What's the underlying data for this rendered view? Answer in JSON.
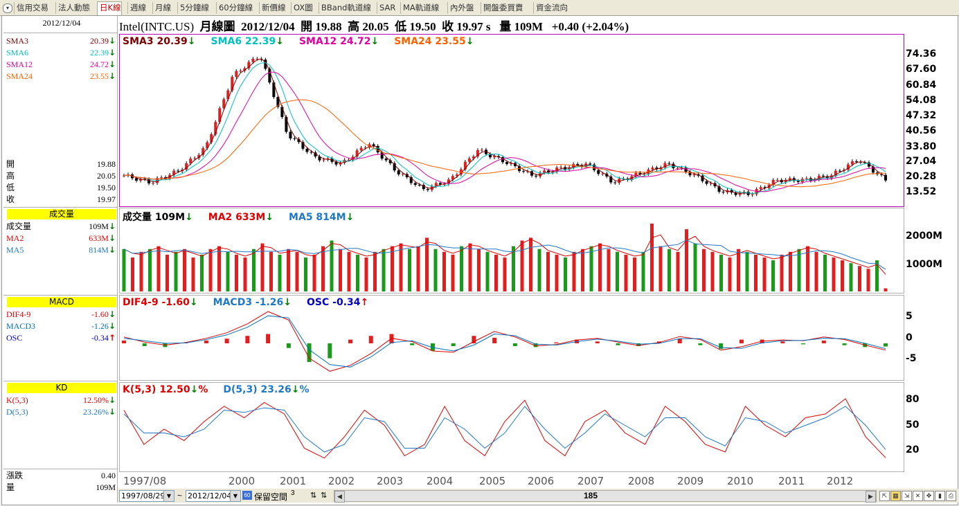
{
  "tabs": [
    "信用交易",
    "法人動態",
    "日K線",
    "週線",
    "月線",
    "5分鐘線",
    "60分鐘線",
    "新價線",
    "OX圖",
    "BBand軌道線",
    "SAR",
    "MA軌道線",
    "內外盤",
    "開盤委買賣",
    "資金流向"
  ],
  "active_tab": "日K線",
  "colors": {
    "up": "#e02020",
    "down": "#1a9a1a",
    "sma3": "#800000",
    "sma6": "#00c0c0",
    "sma12": "#e000a0",
    "sma24": "#ff6000",
    "macd": "#0070c0",
    "dif": "#e00000",
    "osc": "#0000c0",
    "kline_k": "#e00000",
    "kline_d": "#1e78c8",
    "ma5vol": "#1e78c8",
    "ma2vol": "#e00000"
  },
  "side": {
    "date": "2012/12/04",
    "sma": [
      {
        "label": "SMA3",
        "value": "20.39",
        "dir": "down"
      },
      {
        "label": "SMA6",
        "value": "22.39",
        "dir": "down"
      },
      {
        "label": "SMA12",
        "value": "24.72",
        "dir": "down"
      },
      {
        "label": "SMA24",
        "value": "23.55",
        "dir": "down"
      }
    ],
    "ohlc": [
      {
        "label": "開",
        "value": "19.88"
      },
      {
        "label": "高",
        "value": "20.05"
      },
      {
        "label": "低",
        "value": "19.50"
      },
      {
        "label": "收",
        "value": "19.97"
      }
    ],
    "vol_title": "成交量",
    "vol": [
      {
        "label": "成交量",
        "value": "109M",
        "dir": "down"
      },
      {
        "label": "MA2",
        "value": "633M",
        "dir": "down"
      },
      {
        "label": "MA5",
        "value": "814M",
        "dir": "down"
      }
    ],
    "macd_title": "MACD",
    "macd": [
      {
        "label": "DIF4-9",
        "value": "-1.60",
        "dir": "down"
      },
      {
        "label": "MACD3",
        "value": "-1.26",
        "dir": "down"
      },
      {
        "label": "OSC",
        "value": "-0.34",
        "dir": "up"
      }
    ],
    "kd_title": "KD",
    "kd": [
      {
        "label": "K(5,3)",
        "value": "12.50%",
        "dir": "down"
      },
      {
        "label": "D(5,3)",
        "value": "23.26%",
        "dir": "down"
      }
    ],
    "change_label": "漲跌",
    "change_value": "0.40",
    "volume_label": "量",
    "volume_value": "109M"
  },
  "header": {
    "symbol": "Intel(INTC.US)",
    "period": "月線圖",
    "date": "2012/12/04",
    "open_label": "開",
    "open": "19.88",
    "high_label": "高",
    "high": "20.05",
    "low_label": "低",
    "low": "19.50",
    "close_label": "收",
    "close": "19.97",
    "close_flag": "s",
    "vol_label": "量",
    "vol": "109M",
    "change": "+0.40 (+2.04%)"
  },
  "legends": {
    "price": [
      {
        "text": "SMA3 20.39",
        "dir": "down",
        "color": "#800000"
      },
      {
        "text": "SMA6 22.39",
        "dir": "down",
        "color": "#00c0c0"
      },
      {
        "text": "SMA12 24.72",
        "dir": "down",
        "color": "#e000a0"
      },
      {
        "text": "SMA24 23.55",
        "dir": "down",
        "color": "#ff6000"
      }
    ],
    "volume": [
      {
        "text": "成交量 109M",
        "dir": "down",
        "color": "#000000"
      },
      {
        "text": "MA2 633M",
        "dir": "down",
        "color": "#e00000"
      },
      {
        "text": "MA5 814M",
        "dir": "down",
        "color": "#1e78c8"
      }
    ],
    "macd": [
      {
        "text": "DIF4-9 -1.60",
        "dir": "down",
        "color": "#e00000"
      },
      {
        "text": "MACD3 -1.26",
        "dir": "down",
        "color": "#1e78c8"
      },
      {
        "text": "OSC -0.34",
        "dir": "up",
        "color": "#0000c0"
      }
    ],
    "kd": [
      {
        "text": "K(5,3) 12.50",
        "dir": "down",
        "suffix": "%",
        "color": "#e00000"
      },
      {
        "text": "D(5,3) 23.26",
        "dir": "down",
        "suffix": "%",
        "color": "#1e78c8"
      }
    ]
  },
  "axes": {
    "price_ticks": [
      "74.36",
      "67.60",
      "60.84",
      "54.08",
      "47.32",
      "40.56",
      "33.80",
      "27.04",
      "20.28",
      "13.52"
    ],
    "volume_ticks": [
      "2000M",
      "1000M"
    ],
    "macd_ticks": [
      "5",
      "0",
      "-5"
    ],
    "kd_ticks": [
      "80",
      "50",
      "20"
    ],
    "x_labels": [
      "1997/08",
      "2000",
      "2001",
      "2002",
      "2003",
      "2004",
      "2005",
      "2006",
      "2007",
      "2008",
      "2009",
      "2010",
      "2011",
      "2012"
    ]
  },
  "bottom": {
    "start_date": "1997/08/29",
    "tilde": "~",
    "end_date": "2012/12/04",
    "reserve_label": "保留空間",
    "reserve_value": "3",
    "scroll_value": "185"
  },
  "chart_data": [
    {
      "type": "line",
      "title": "Intel(INTC.US) 月線圖",
      "x_range": [
        "1997/08",
        "2012/12"
      ],
      "ylim": [
        13.52,
        74.36
      ],
      "series": [
        {
          "name": "Close",
          "x": [
            "1997/08",
            "1998/06",
            "1999/06",
            "1999/12",
            "2000/06",
            "2000/08",
            "2000/11",
            "2001/06",
            "2001/09",
            "2002/01",
            "2002/06",
            "2002/10",
            "2003/06",
            "2003/12",
            "2004/06",
            "2004/09",
            "2005/06",
            "2006/01",
            "2006/07",
            "2007/06",
            "2007/11",
            "2008/06",
            "2008/11",
            "2009/03",
            "2009/12",
            "2010/06",
            "2011/06",
            "2012/04",
            "2012/12"
          ],
          "values": [
            22,
            19,
            24,
            34,
            65,
            74,
            40,
            30,
            27,
            36,
            24,
            16,
            20,
            33,
            28,
            22,
            25,
            27,
            19,
            23,
            27,
            22,
            15,
            14,
            20,
            20,
            22,
            29,
            19.97
          ]
        },
        {
          "name": "SMA24",
          "values": [
            20,
            19,
            20,
            24,
            37,
            42,
            48,
            46,
            44,
            41,
            37,
            30,
            24,
            22,
            23,
            24,
            25,
            25,
            24,
            23,
            23,
            24,
            22,
            19,
            17,
            19,
            20,
            22,
            23.55
          ]
        }
      ]
    },
    {
      "type": "bar",
      "title": "成交量",
      "ylim": [
        0,
        2400
      ],
      "unit": "M",
      "values": [
        1500,
        1200,
        1400,
        1500,
        1600,
        1300,
        1400,
        1500,
        1200,
        1300,
        1500,
        1600,
        1400,
        1300,
        1200,
        1500,
        1700,
        1400,
        1300,
        1500,
        1400,
        1200,
        1300,
        1600,
        1800,
        1500,
        1400,
        1300,
        1200,
        1400,
        1500,
        1600,
        1700,
        1500,
        1600,
        1900,
        1500,
        1400,
        1300,
        1600,
        1700,
        1500,
        1400,
        1300,
        1200,
        1600,
        1800,
        1900,
        1500,
        1400,
        1300,
        1200,
        1400,
        1500,
        1600,
        1700,
        1500,
        1400,
        1300,
        1200,
        1400,
        2400,
        1600,
        1500,
        1400,
        2200,
        1700,
        1500,
        1400,
        1300,
        1200,
        1500,
        1400,
        1300,
        1200,
        1100,
        1300,
        1400,
        1500,
        1600,
        1400,
        1300,
        1200,
        1100,
        1000,
        900,
        800,
        1100,
        109
      ]
    },
    {
      "type": "line",
      "title": "MACD",
      "ylim": [
        -8,
        8
      ],
      "series": [
        {
          "name": "DIF4-9",
          "values": [
            1.5,
            0.3,
            -0.4,
            0.2,
            1.2,
            2.5,
            4.6,
            7.5,
            5.5,
            -3.5,
            -6.6,
            -5.2,
            -2.4,
            1.2,
            0.4,
            -1.8,
            -2.1,
            0.4,
            2.8,
            1.5,
            -0.6,
            -0.3,
            0.8,
            1.2,
            0.3,
            -0.5,
            0.2,
            1.6,
            0.9,
            -1.6,
            -0.8,
            0.5,
            0.8,
            0.6,
            1.5,
            0.9,
            -0.4,
            -1.6
          ]
        },
        {
          "name": "MACD3",
          "values": [
            1.2,
            0.6,
            0.0,
            0.1,
            0.9,
            2.0,
            3.8,
            6.5,
            6.0,
            -1.5,
            -5.0,
            -5.6,
            -3.2,
            0.2,
            0.6,
            -1.0,
            -1.8,
            -0.4,
            2.2,
            1.8,
            -0.2,
            -0.4,
            0.4,
            1.0,
            0.5,
            -0.2,
            0.0,
            1.1,
            1.1,
            -1.0,
            -1.2,
            0.1,
            0.6,
            0.7,
            1.2,
            1.1,
            0.0,
            -1.26
          ]
        }
      ]
    },
    {
      "type": "line",
      "title": "KD",
      "ylim": [
        0,
        100
      ],
      "series": [
        {
          "name": "K(5,3)",
          "values": [
            75,
            30,
            50,
            35,
            60,
            80,
            65,
            85,
            70,
            25,
            12,
            40,
            75,
            55,
            15,
            30,
            80,
            35,
            15,
            60,
            88,
            35,
            15,
            60,
            75,
            45,
            30,
            80,
            60,
            30,
            20,
            80,
            55,
            40,
            65,
            70,
            90,
            40,
            12.5
          ]
        },
        {
          "name": "D(5,3)",
          "values": [
            70,
            45,
            45,
            40,
            50,
            75,
            72,
            78,
            75,
            40,
            20,
            30,
            65,
            60,
            25,
            25,
            65,
            50,
            25,
            45,
            80,
            50,
            25,
            45,
            70,
            55,
            40,
            65,
            65,
            40,
            28,
            65,
            60,
            45,
            55,
            65,
            80,
            55,
            23.26
          ]
        }
      ]
    }
  ]
}
